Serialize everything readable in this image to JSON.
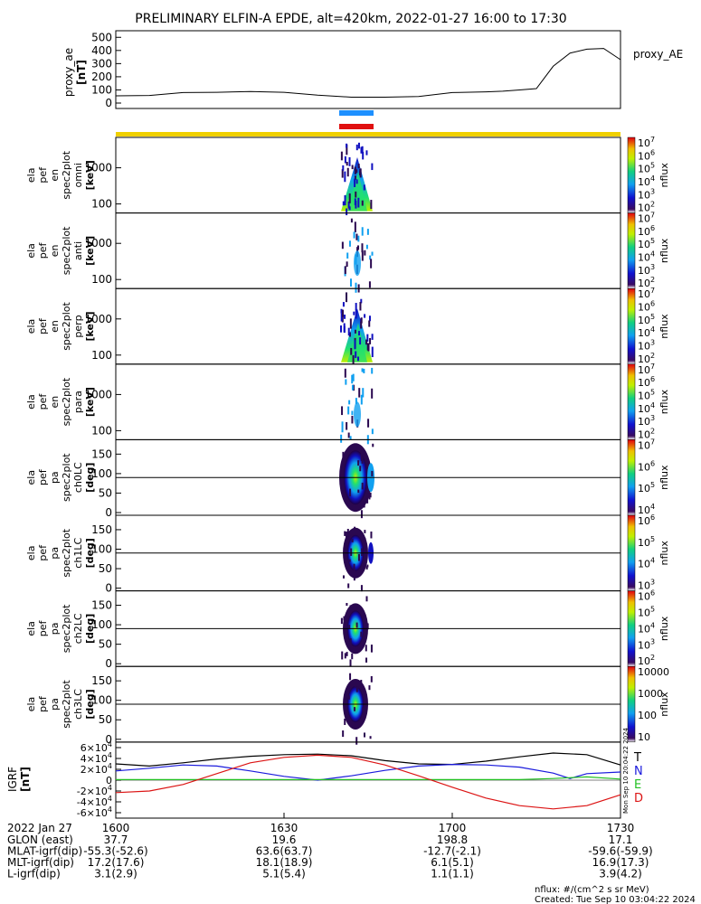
{
  "title": "PRELIMINARY ELFIN-A EPDE, alt=420km, 2022-01-27 16:00 to 17:30",
  "ae_panel": {
    "ylabel": "proxy_ae",
    "yunit": "[nT]",
    "legend": "proxy_AE",
    "ticks": [
      "0",
      "100",
      "200",
      "300",
      "400",
      "500"
    ]
  },
  "spec_panels": [
    {
      "label": [
        "ela",
        "pef",
        "en",
        "spec2plot",
        "omni"
      ],
      "unit": "[keV]",
      "ticks": [
        "100",
        "1000"
      ],
      "cb_ticks": [
        "10^2",
        "10^3",
        "10^4",
        "10^5",
        "10^6",
        "10^7"
      ],
      "cb_label": "nflux"
    },
    {
      "label": [
        "ela",
        "pef",
        "en",
        "spec2plot",
        "anti"
      ],
      "unit": "[keV]",
      "ticks": [
        "100",
        "1000"
      ],
      "cb_ticks": [
        "10^2",
        "10^3",
        "10^4",
        "10^5",
        "10^6",
        "10^7"
      ],
      "cb_label": "nflux"
    },
    {
      "label": [
        "ela",
        "pef",
        "en",
        "spec2plot",
        "perp"
      ],
      "unit": "[keV]",
      "ticks": [
        "100",
        "1000"
      ],
      "cb_ticks": [
        "10^2",
        "10^3",
        "10^4",
        "10^5",
        "10^6",
        "10^7"
      ],
      "cb_label": "nflux"
    },
    {
      "label": [
        "ela",
        "pef",
        "en",
        "spec2plot",
        "para"
      ],
      "unit": "[keV]",
      "ticks": [
        "100",
        "1000"
      ],
      "cb_ticks": [
        "10^2",
        "10^3",
        "10^4",
        "10^5",
        "10^6",
        "10^7"
      ],
      "cb_label": "nflux"
    },
    {
      "label": [
        "ela",
        "pef",
        "pa",
        "spec2plot",
        "ch0LC"
      ],
      "unit": "[deg]",
      "ticks": [
        "0",
        "50",
        "100",
        "150"
      ],
      "cb_ticks": [
        "10^4",
        "10^5",
        "10^6",
        "10^7"
      ],
      "cb_label": "nflux"
    },
    {
      "label": [
        "ela",
        "pef",
        "pa",
        "spec2plot",
        "ch1LC"
      ],
      "unit": "[deg]",
      "ticks": [
        "0",
        "50",
        "100",
        "150"
      ],
      "cb_ticks": [
        "10^3",
        "10^4",
        "10^5",
        "10^6"
      ],
      "cb_label": "nflux"
    },
    {
      "label": [
        "ela",
        "pef",
        "pa",
        "spec2plot",
        "ch2LC"
      ],
      "unit": "[deg]",
      "ticks": [
        "0",
        "50",
        "100",
        "150"
      ],
      "cb_ticks": [
        "10^2",
        "10^3",
        "10^4",
        "10^5",
        "10^6"
      ],
      "cb_label": "nflux"
    },
    {
      "label": [
        "ela",
        "pef",
        "pa",
        "spec2plot",
        "ch3LC"
      ],
      "unit": "[deg]",
      "ticks": [
        "0",
        "50",
        "100",
        "150"
      ],
      "cb_ticks": [
        "10",
        "100",
        "1000",
        "10000"
      ],
      "cb_label": "nflux"
    }
  ],
  "igrf_panel": {
    "ylabel": "IGRF",
    "yunit": "[nT]",
    "ticks": [
      "-6×10^4",
      "-4×10^4",
      "-2×10^4",
      "0",
      "2×10^4",
      "4×10^4",
      "6×10^4"
    ],
    "legend": [
      {
        "name": "T",
        "color": "#000000"
      },
      {
        "name": "N",
        "color": "#1a1adc"
      },
      {
        "name": "E",
        "color": "#22c022"
      },
      {
        "name": "D",
        "color": "#dc1414"
      }
    ],
    "side_stamp": "Mon Sep 10 20:04:22 2024"
  },
  "state_bars": {
    "fast_color": "#1e90ff",
    "science_color": "#e01010",
    "sun_color": "#f0d000"
  },
  "xaxis": {
    "header": "2022 Jan 27",
    "ticks": [
      "1600",
      "1630",
      "1700",
      "1730"
    ],
    "rows": [
      {
        "label": "GLON (east)",
        "values": [
          "37.7",
          "19.6",
          "198.8",
          "17.1"
        ]
      },
      {
        "label": "MLAT-igrf(dip)",
        "values": [
          "-55.3(-52.6)",
          "63.6(63.7)",
          "-12.7(-2.1)",
          "-59.6(-59.9)"
        ]
      },
      {
        "label": "MLT-igrf(dip)",
        "values": [
          "17.2(17.6)",
          "18.1(18.9)",
          "6.1(5.1)",
          "16.9(17.3)"
        ]
      },
      {
        "label": "L-igrf(dip)",
        "values": [
          "3.1(2.9)",
          "5.1(5.4)",
          "1.1(1.1)",
          "3.9(4.2)"
        ]
      }
    ]
  },
  "footer": {
    "units": "nflux: #/(cm^2 s sr MeV)",
    "created": "Created: Tue Sep 10 03:04:22 2024"
  },
  "chart_data": [
    {
      "type": "line",
      "series": [
        {
          "name": "proxy_AE",
          "x": [
            16.0,
            16.1,
            16.2,
            16.3,
            16.4,
            16.5,
            16.6,
            16.7,
            16.8,
            16.9,
            17.0,
            17.1,
            17.15,
            17.2,
            17.25,
            17.3,
            17.35,
            17.4,
            17.45,
            17.5
          ],
          "values": [
            55,
            58,
            80,
            82,
            88,
            82,
            60,
            45,
            45,
            50,
            80,
            85,
            90,
            100,
            110,
            280,
            380,
            410,
            415,
            330
          ]
        }
      ],
      "xlim": [
        16.0,
        17.5
      ],
      "ylim": [
        0,
        550
      ]
    },
    {
      "type": "heatmap",
      "panels": [
        "omni",
        "anti",
        "perp",
        "para",
        "ch0LC",
        "ch1LC",
        "ch2LC",
        "ch3LC"
      ],
      "active_time_range": [
        "16:37",
        "16:43"
      ]
    },
    {
      "type": "line",
      "xlim": [
        16.0,
        17.5
      ],
      "ylim": [
        -70000,
        70000
      ],
      "series": [
        {
          "name": "T",
          "x": [
            16.0,
            16.1,
            16.2,
            16.3,
            16.4,
            16.5,
            16.6,
            16.7,
            16.8,
            16.9,
            17.0,
            17.1,
            17.2,
            17.3,
            17.4,
            17.5
          ],
          "values": [
            30000,
            26000,
            32000,
            39000,
            44000,
            47000,
            48000,
            45000,
            36000,
            30000,
            29000,
            35000,
            43000,
            50000,
            47000,
            28000
          ]
        },
        {
          "name": "N",
          "x": [
            16.0,
            16.1,
            16.2,
            16.3,
            16.4,
            16.5,
            16.6,
            16.7,
            16.8,
            16.9,
            17.0,
            17.1,
            17.2,
            17.3,
            17.35,
            17.4,
            17.5
          ],
          "values": [
            17000,
            22000,
            28000,
            26000,
            17000,
            7000,
            0,
            8000,
            18000,
            26000,
            29000,
            28000,
            24000,
            13000,
            3000,
            12000,
            15000
          ]
        },
        {
          "name": "E",
          "x": [
            16.0,
            16.2,
            16.4,
            16.6,
            16.8,
            17.0,
            17.2,
            17.3,
            17.4,
            17.5
          ],
          "values": [
            1000,
            1000,
            1000,
            1000,
            1000,
            1000,
            1000,
            3000,
            6000,
            2000
          ]
        },
        {
          "name": "D",
          "x": [
            16.0,
            16.1,
            16.2,
            16.3,
            16.4,
            16.5,
            16.6,
            16.7,
            16.8,
            16.9,
            17.0,
            17.1,
            17.2,
            17.3,
            17.4,
            17.5
          ],
          "values": [
            -23000,
            -20000,
            -8000,
            12000,
            32000,
            42000,
            46000,
            42000,
            28000,
            8000,
            -13000,
            -33000,
            -47000,
            -53000,
            -47000,
            -27000
          ]
        }
      ]
    }
  ]
}
